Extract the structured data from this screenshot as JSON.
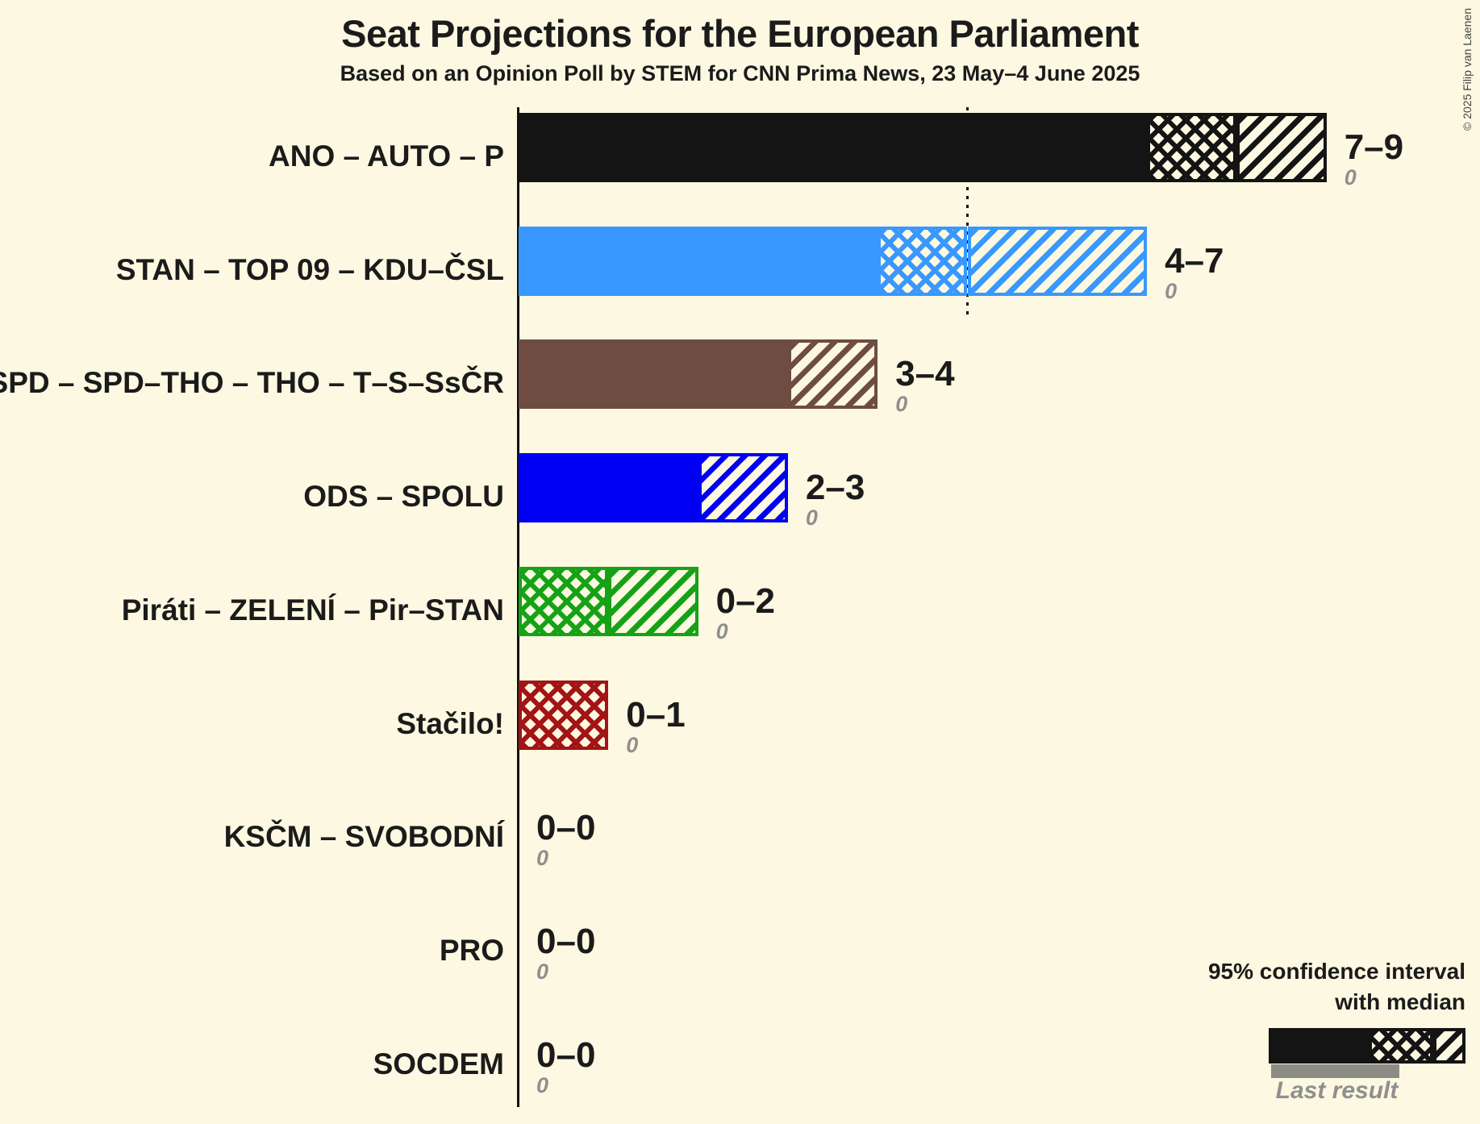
{
  "page": {
    "title": "Seat Projections for the European Parliament",
    "subtitle": "Based on an Opinion Poll by STEM for CNN Prima News, 23 May–4 June 2025",
    "copyright": "© 2025 Filip van Laenen",
    "background": "#FCF8E1",
    "text_color": "#1b1b1b",
    "muted_color": "#8F8F8F"
  },
  "legend": {
    "ci_line1": "95% confidence interval",
    "ci_line2": "with median",
    "last_result": "Last result",
    "sample_color": "#141414",
    "last_result_color": "#8C8C84"
  },
  "chart_data": {
    "type": "bar",
    "orientation": "horizontal",
    "title": "Seat Projections for the European Parliament",
    "unit": "seats",
    "x_axis": {
      "min": 0,
      "max": 9,
      "gridlines": false,
      "threshold_seats": 5
    },
    "legend_position": "bottom-right",
    "categories": [
      "ANO – AUTO – P",
      "STAN – TOP 09 – KDU–ČSL",
      "SPD – SPD–THO – THO – T–S–SsČR",
      "ODS – SPOLU",
      "Piráti – ZELENÍ – Pir–STAN",
      "Stačilo!",
      "KSČM – SVOBODNÍ",
      "PRO",
      "SOCDEM"
    ],
    "series": [
      {
        "label": "ANO – AUTO – P",
        "color": "#141414",
        "ci_low": 7,
        "median": 8,
        "ci_high": 9,
        "range_label": "7–9",
        "last_result": 0,
        "last_result_label": "0"
      },
      {
        "label": "STAN – TOP 09 – KDU–ČSL",
        "color": "#3898FF",
        "ci_low": 4,
        "median": 5,
        "ci_high": 7,
        "range_label": "4–7",
        "last_result": 0,
        "last_result_label": "0"
      },
      {
        "label": "SPD – SPD–THO – THO – T–S–SsČR",
        "color": "#6F4C42",
        "ci_low": 3,
        "median": 3,
        "ci_high": 4,
        "range_label": "3–4",
        "last_result": 0,
        "last_result_label": "0"
      },
      {
        "label": "ODS – SPOLU",
        "color": "#0000F5",
        "ci_low": 2,
        "median": 2,
        "ci_high": 3,
        "range_label": "2–3",
        "last_result": 0,
        "last_result_label": "0"
      },
      {
        "label": "Piráti – ZELENÍ – Pir–STAN",
        "color": "#16A216",
        "ci_low": 0,
        "median": 1,
        "ci_high": 2,
        "range_label": "0–2",
        "last_result": 0,
        "last_result_label": "0"
      },
      {
        "label": "Stačilo!",
        "color": "#A31414",
        "ci_low": 0,
        "median": 1,
        "ci_high": 1,
        "range_label": "0–1",
        "last_result": 0,
        "last_result_label": "0"
      },
      {
        "label": "KSČM – SVOBODNÍ",
        "color": "#777777",
        "ci_low": 0,
        "median": 0,
        "ci_high": 0,
        "range_label": "0–0",
        "last_result": 0,
        "last_result_label": "0"
      },
      {
        "label": "PRO",
        "color": "#777777",
        "ci_low": 0,
        "median": 0,
        "ci_high": 0,
        "range_label": "0–0",
        "last_result": 0,
        "last_result_label": "0"
      },
      {
        "label": "SOCDEM",
        "color": "#777777",
        "ci_low": 0,
        "median": 0,
        "ci_high": 0,
        "range_label": "0–0",
        "last_result": 0,
        "last_result_label": "0"
      }
    ]
  }
}
